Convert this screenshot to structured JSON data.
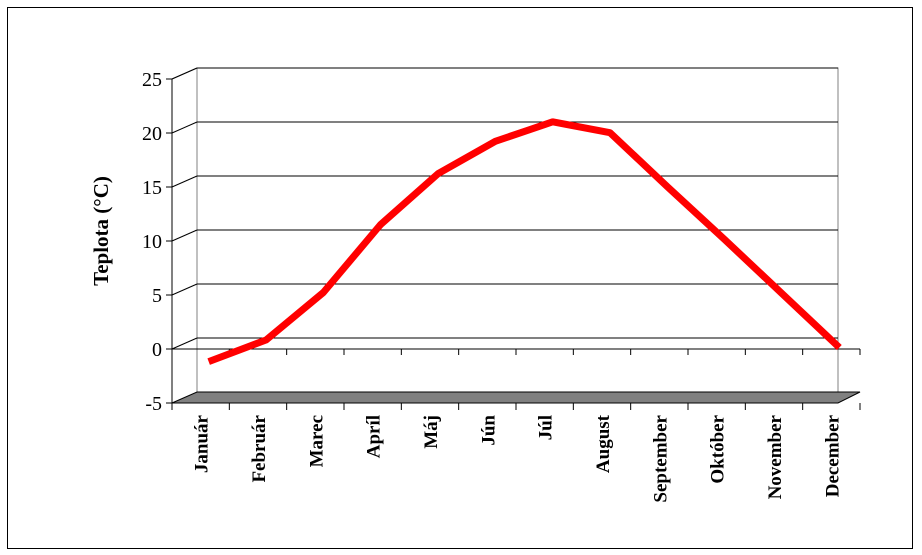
{
  "chart_data": {
    "type": "line",
    "title": "",
    "xlabel": "",
    "ylabel": "Teplota (°C)",
    "ylim": [
      -5,
      25
    ],
    "yticks": [
      -5,
      0,
      5,
      10,
      15,
      20,
      25
    ],
    "grid": true,
    "categories": [
      "Január",
      "Február",
      "Marec",
      "Apríl",
      "Máj",
      "Jún",
      "Júl",
      "August",
      "September",
      "Október",
      "November",
      "December"
    ],
    "series": [
      {
        "values": [
          -1.4,
          0.6,
          5.0,
          11.3,
          16.0,
          19.0,
          20.8,
          19.8,
          14.8,
          9.9,
          4.9,
          -0.1
        ],
        "color": "#ff0000"
      }
    ],
    "style": "3d-wall"
  }
}
